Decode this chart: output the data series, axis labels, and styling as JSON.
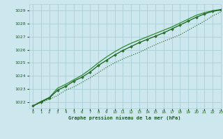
{
  "title": "Graphe pression niveau de la mer (hPa)",
  "bg_color": "#cce8ee",
  "grid_color": "#aacdd6",
  "line_color_dark": "#1a5c1a",
  "line_color_medium": "#2d8c2d",
  "xlim": [
    -0.5,
    23
  ],
  "ylim": [
    1021.5,
    1029.5
  ],
  "yticks": [
    1022,
    1023,
    1024,
    1025,
    1026,
    1027,
    1028,
    1029
  ],
  "xticks": [
    0,
    1,
    2,
    3,
    4,
    5,
    6,
    7,
    8,
    9,
    10,
    11,
    12,
    13,
    14,
    15,
    16,
    17,
    18,
    19,
    20,
    21,
    22,
    23
  ],
  "series1": [
    1021.7,
    1021.95,
    1022.2,
    1022.5,
    1022.9,
    1023.15,
    1023.5,
    1023.85,
    1024.25,
    1024.65,
    1025.0,
    1025.3,
    1025.55,
    1025.8,
    1026.1,
    1026.4,
    1026.65,
    1026.9,
    1027.15,
    1027.5,
    1027.85,
    1028.2,
    1028.6,
    1028.9
  ],
  "series2": [
    1021.7,
    1022.0,
    1022.3,
    1022.9,
    1023.2,
    1023.6,
    1023.9,
    1024.3,
    1024.8,
    1025.2,
    1025.6,
    1025.95,
    1026.25,
    1026.55,
    1026.8,
    1027.05,
    1027.3,
    1027.6,
    1027.9,
    1028.2,
    1028.5,
    1028.75,
    1028.95,
    1029.05
  ],
  "series3": [
    1021.7,
    1022.05,
    1022.35,
    1023.05,
    1023.35,
    1023.7,
    1024.05,
    1024.5,
    1025.0,
    1025.45,
    1025.85,
    1026.2,
    1026.5,
    1026.75,
    1027.0,
    1027.25,
    1027.5,
    1027.75,
    1028.05,
    1028.35,
    1028.65,
    1028.85,
    1029.0,
    1029.1
  ]
}
